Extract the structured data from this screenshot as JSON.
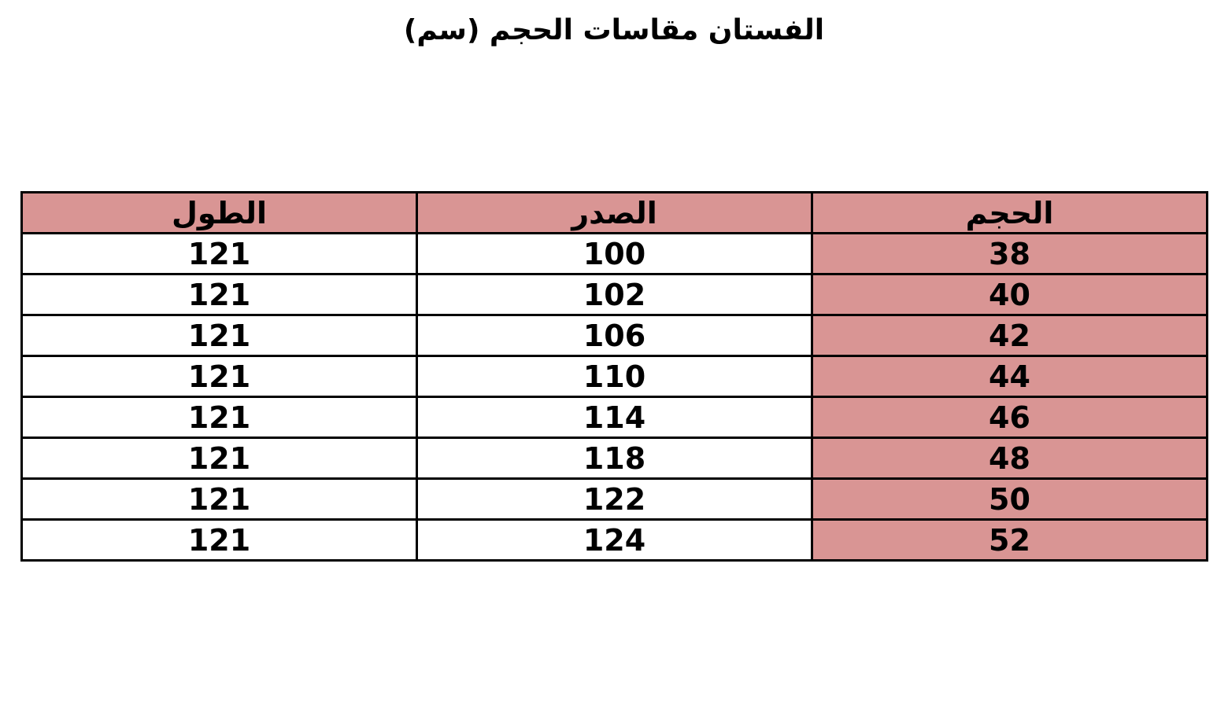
{
  "title": "الفستان مقاسات الحجم (سم)",
  "colors": {
    "highlight": "#d99594",
    "border": "#000000"
  },
  "table": {
    "headers": [
      "الحجم",
      "الصدر",
      "الطول"
    ],
    "rows": [
      [
        "38",
        "100",
        "121"
      ],
      [
        "40",
        "102",
        "121"
      ],
      [
        "42",
        "106",
        "121"
      ],
      [
        "44",
        "110",
        "121"
      ],
      [
        "46",
        "114",
        "121"
      ],
      [
        "48",
        "118",
        "121"
      ],
      [
        "50",
        "122",
        "121"
      ],
      [
        "52",
        "124",
        "121"
      ]
    ]
  }
}
